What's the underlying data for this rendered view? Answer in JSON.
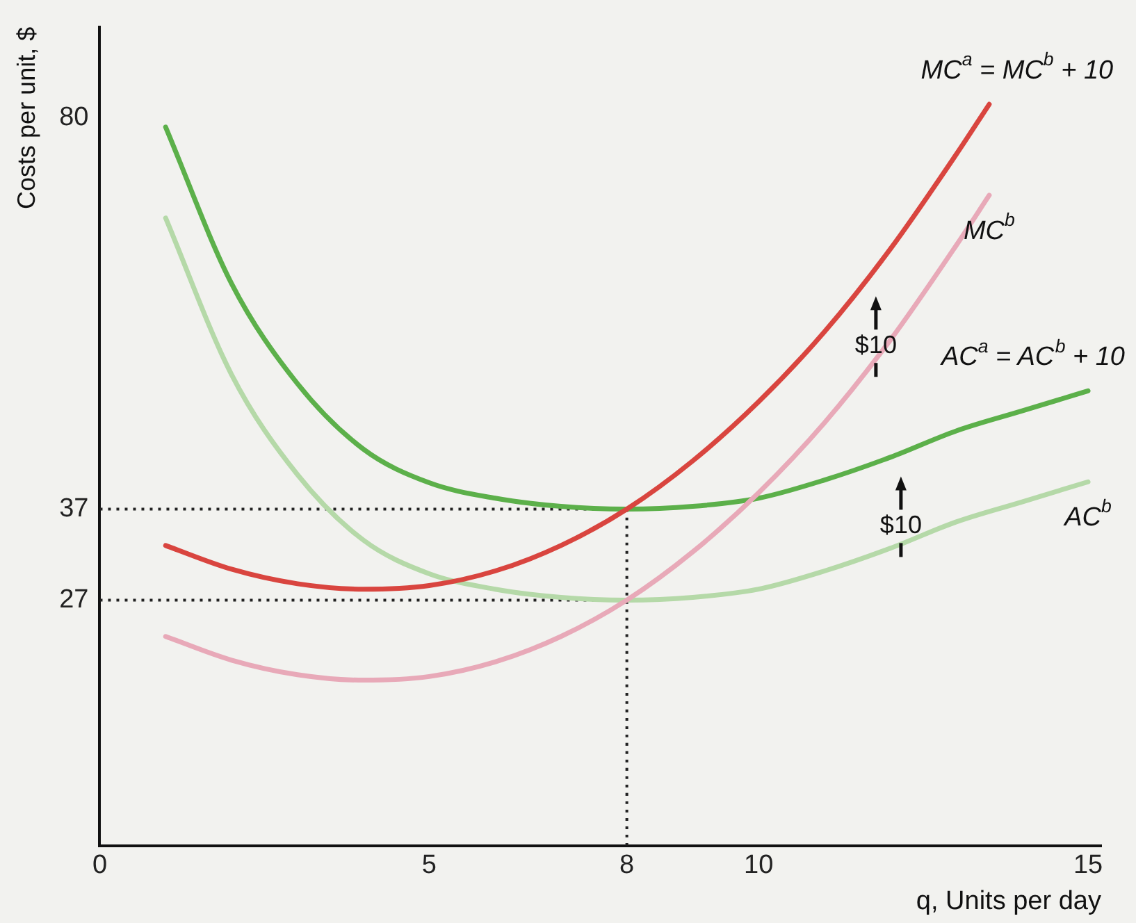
{
  "chart_data": {
    "type": "line",
    "xlabel": "q, Units per day",
    "ylabel": "Costs per unit, $",
    "xlim": [
      0,
      15.2
    ],
    "ylim": [
      0,
      90
    ],
    "xticks": [
      0,
      5,
      8,
      10,
      15
    ],
    "yticks": [
      27,
      37,
      80
    ],
    "grid": false,
    "legend": false,
    "marker": "none",
    "series": [
      {
        "name": "MC$^{a}$ = MC$^{b}$ + 10",
        "color": "#d9453f",
        "x": [
          1,
          2,
          3,
          4,
          5,
          6,
          7,
          8,
          9,
          10,
          11,
          12,
          13,
          13.5
        ],
        "values": [
          33,
          30.4,
          28.8,
          28.2,
          28.6,
          30.2,
          33,
          37,
          42.3,
          48.8,
          56.5,
          65.6,
          76,
          81.5
        ]
      },
      {
        "name": "MC$^{b}$",
        "color": "#e8a9b8",
        "x": [
          1,
          2,
          3,
          4,
          5,
          6,
          7,
          8,
          9,
          10,
          11,
          12,
          13,
          13.5
        ],
        "values": [
          23,
          20.4,
          18.8,
          18.2,
          18.6,
          20.2,
          23,
          27,
          32.3,
          38.8,
          46.5,
          55.6,
          66,
          71.5
        ]
      },
      {
        "name": "AC$^{a}$ = AC$^{b}$ + 10",
        "color": "#5cb04a",
        "x": [
          1,
          2,
          3,
          4,
          5,
          6,
          7,
          8,
          9,
          10,
          11,
          12,
          13,
          14,
          15
        ],
        "values": [
          79,
          61.8,
          50.8,
          43.6,
          39.9,
          38.2,
          37.3,
          37,
          37.3,
          38.2,
          40.2,
          42.7,
          45.6,
          47.8,
          50
        ]
      },
      {
        "name": "AC$^{b}$",
        "color": "#b5d9a8",
        "x": [
          1,
          2,
          3,
          4,
          5,
          6,
          7,
          8,
          9,
          10,
          11,
          12,
          13,
          14,
          15
        ],
        "values": [
          69,
          51.8,
          40.8,
          33.6,
          29.9,
          28.2,
          27.3,
          27,
          27.3,
          28.2,
          30.2,
          32.7,
          35.6,
          37.8,
          40
        ]
      },
      {
        "color": "#222222",
        "line_style": "dotted",
        "x": [
          0,
          8
        ],
        "values": [
          37,
          37
        ]
      },
      {
        "color": "#222222",
        "line_style": "dotted",
        "x": [
          0,
          8
        ],
        "values": [
          27,
          27
        ]
      },
      {
        "color": "#222222",
        "line_style": "dotted",
        "x": [
          8,
          8
        ],
        "values": [
          0,
          37
        ]
      }
    ],
    "annotations": [
      "$10",
      "$10"
    ]
  }
}
